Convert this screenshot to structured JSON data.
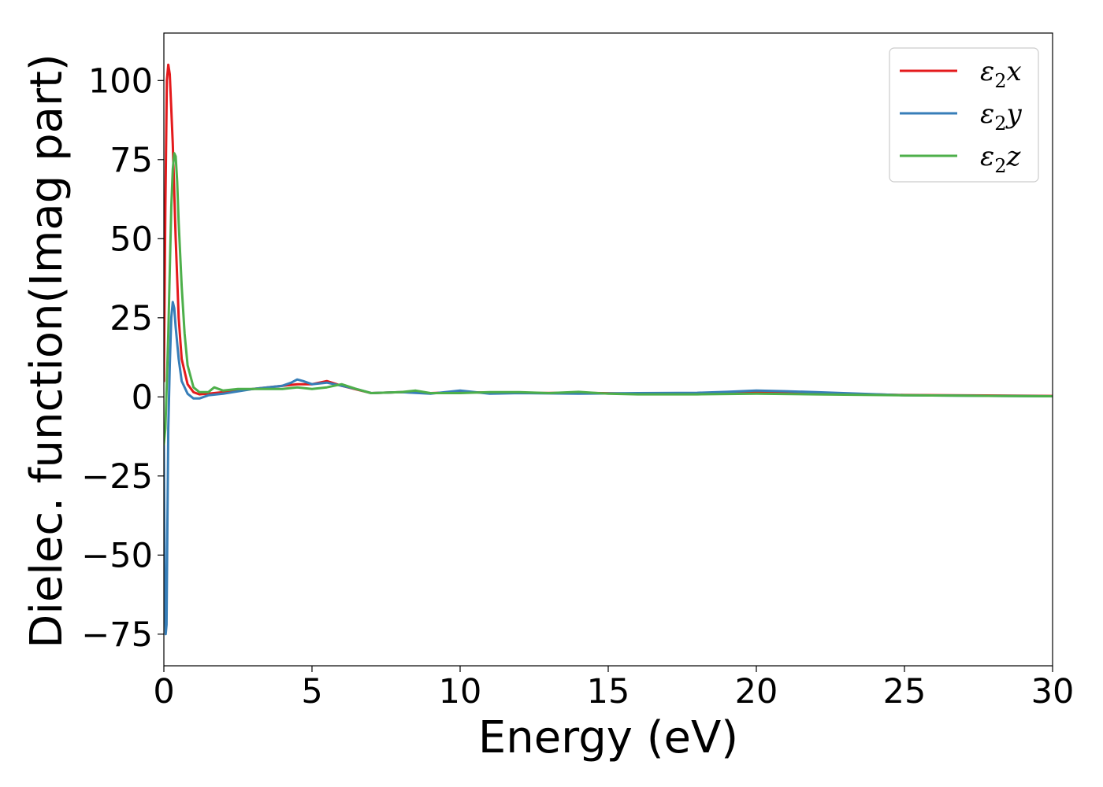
{
  "chart_data": {
    "type": "line",
    "title": "",
    "xlabel": "Energy (eV)",
    "ylabel": "Dielec. function(Imag part)",
    "xlim": [
      0,
      30
    ],
    "ylim": [
      -85,
      115
    ],
    "xticks": [
      0,
      5,
      10,
      15,
      20,
      25,
      30
    ],
    "xtick_labels": [
      "0",
      "5",
      "10",
      "15",
      "20",
      "25",
      "30"
    ],
    "yticks": [
      -75,
      -50,
      -25,
      0,
      25,
      50,
      75,
      100
    ],
    "ytick_labels": [
      "−75",
      "−50",
      "−25",
      "0",
      "25",
      "50",
      "75",
      "100"
    ],
    "grid": false,
    "legend_position": "top-right",
    "series": [
      {
        "name": "ε₂x",
        "legend_base": "ε",
        "legend_sub": "2",
        "legend_suffix": "x",
        "color": "#e41a1c",
        "x": [
          0.0,
          0.05,
          0.1,
          0.15,
          0.2,
          0.3,
          0.4,
          0.5,
          0.6,
          0.8,
          1.0,
          1.2,
          1.5,
          2.0,
          3.0,
          4.0,
          4.5,
          5.0,
          5.5,
          6.0,
          7.0,
          8.0,
          9.0,
          10.0,
          12.0,
          14.0,
          16.0,
          18.0,
          20.0,
          22.0,
          25.0,
          30.0
        ],
        "y": [
          5,
          60,
          100,
          105,
          102,
          80,
          50,
          25,
          12,
          4,
          1.5,
          0.8,
          1.0,
          1.5,
          2.5,
          3.5,
          4.0,
          4.0,
          5.0,
          3.5,
          1.2,
          1.5,
          1.2,
          1.5,
          1.2,
          1.3,
          1.0,
          1.2,
          1.5,
          1.2,
          0.6,
          0.3
        ]
      },
      {
        "name": "ε₂y",
        "legend_base": "ε",
        "legend_sub": "2",
        "legend_suffix": "y",
        "color": "#377eb8",
        "x": [
          0.0,
          0.03,
          0.06,
          0.09,
          0.12,
          0.15,
          0.2,
          0.25,
          0.3,
          0.35,
          0.4,
          0.5,
          0.6,
          0.8,
          1.0,
          1.2,
          1.5,
          2.0,
          3.0,
          4.0,
          4.3,
          4.5,
          4.7,
          5.0,
          5.5,
          6.0,
          6.5,
          7.0,
          8.0,
          9.0,
          10.0,
          10.5,
          11.0,
          12.0,
          14.0,
          16.0,
          18.0,
          19.0,
          20.0,
          21.0,
          22.0,
          25.0,
          30.0
        ],
        "y": [
          -15,
          -60,
          -75,
          -72,
          -40,
          -10,
          10,
          25,
          30,
          28,
          22,
          12,
          5,
          1,
          -0.5,
          -0.5,
          0.5,
          1.0,
          2.5,
          3.5,
          4.5,
          5.5,
          5.0,
          4.0,
          4.5,
          3.5,
          2.5,
          1.2,
          1.5,
          1.0,
          2.0,
          1.5,
          1.0,
          1.2,
          1.0,
          1.2,
          1.3,
          1.6,
          2.0,
          1.8,
          1.5,
          0.5,
          0.2
        ]
      },
      {
        "name": "ε₂z",
        "legend_base": "ε",
        "legend_sub": "2",
        "legend_suffix": "z",
        "color": "#4daf4a",
        "x": [
          0.0,
          0.05,
          0.1,
          0.15,
          0.2,
          0.25,
          0.3,
          0.35,
          0.4,
          0.45,
          0.5,
          0.6,
          0.7,
          0.8,
          1.0,
          1.2,
          1.5,
          1.7,
          2.0,
          2.5,
          3.0,
          4.0,
          4.5,
          5.0,
          5.5,
          6.0,
          6.5,
          7.0,
          8.0,
          8.5,
          9.0,
          10.0,
          11.0,
          12.0,
          13.0,
          14.0,
          15.0,
          16.0,
          18.0,
          20.0,
          22.0,
          25.0,
          30.0
        ],
        "y": [
          -15,
          -10,
          5,
          20,
          40,
          60,
          72,
          77,
          76,
          68,
          55,
          35,
          20,
          10,
          3,
          1.5,
          1.5,
          3.0,
          2.0,
          2.5,
          2.5,
          2.5,
          3.0,
          2.5,
          3.0,
          4.0,
          2.5,
          1.2,
          1.5,
          2.0,
          1.2,
          1.2,
          1.5,
          1.5,
          1.2,
          1.6,
          1.0,
          0.8,
          0.8,
          1.0,
          0.8,
          0.5,
          0.2
        ]
      }
    ]
  }
}
